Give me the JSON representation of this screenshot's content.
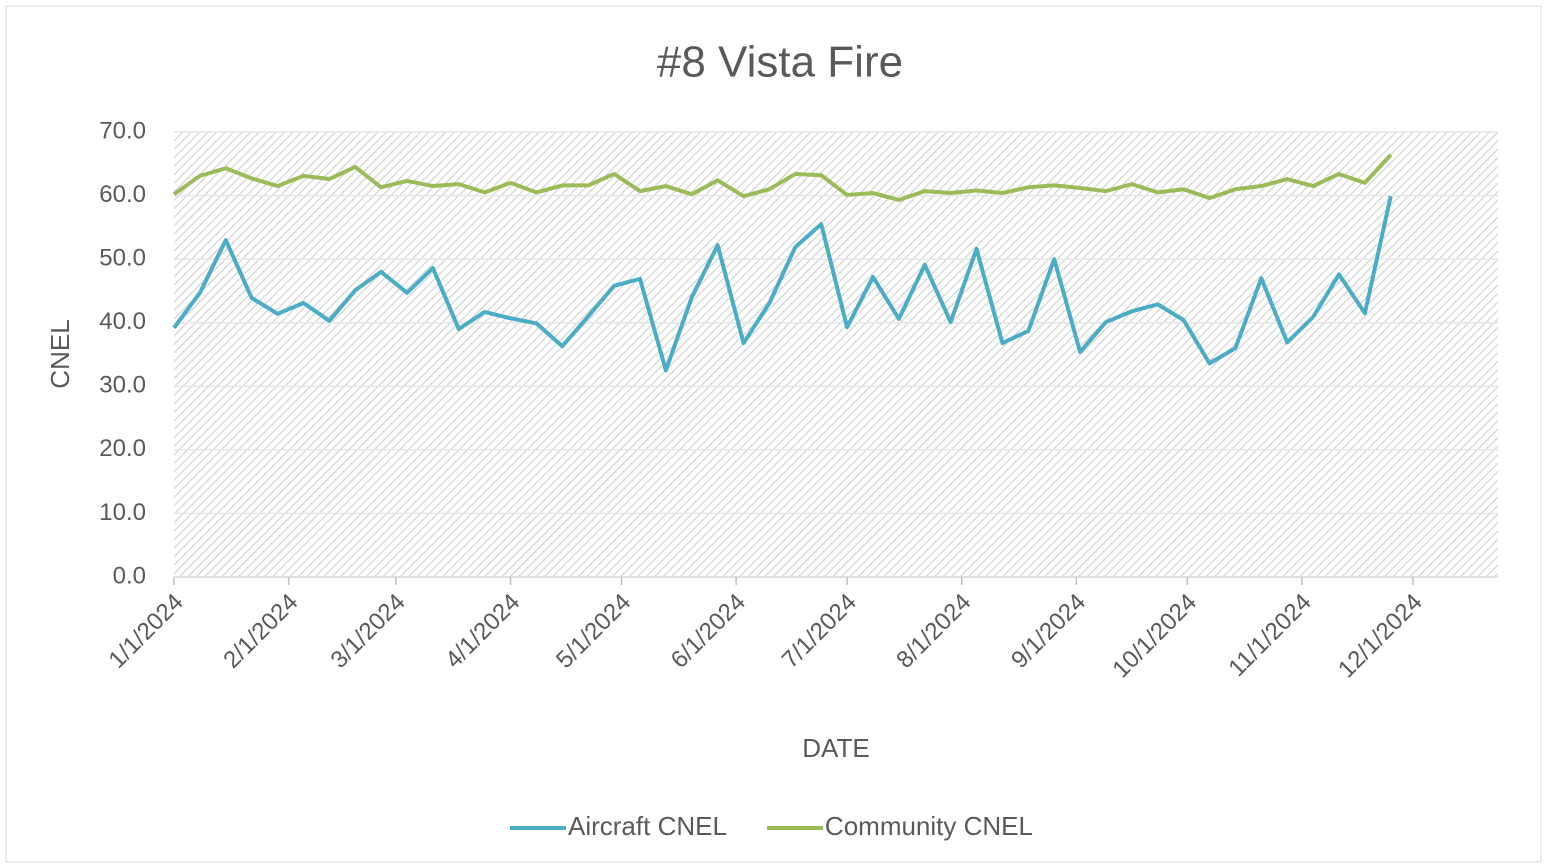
{
  "chart_data": {
    "type": "line",
    "title": "#8 Vista Fire",
    "x_label": "DATE",
    "y_label": "CNEL",
    "x": [
      "1/1/2024",
      "1/8/2024",
      "1/15/2024",
      "1/22/2024",
      "1/29/2024",
      "2/5/2024",
      "2/12/2024",
      "2/19/2024",
      "2/26/2024",
      "3/4/2024",
      "3/11/2024",
      "3/18/2024",
      "3/25/2024",
      "4/1/2024",
      "4/8/2024",
      "4/15/2024",
      "4/22/2024",
      "4/29/2024",
      "5/6/2024",
      "5/13/2024",
      "5/20/2024",
      "5/27/2024",
      "6/3/2024",
      "6/10/2024",
      "6/17/2024",
      "6/24/2024",
      "7/1/2024",
      "7/8/2024",
      "7/15/2024",
      "7/22/2024",
      "7/29/2024",
      "8/5/2024",
      "8/12/2024",
      "8/19/2024",
      "8/26/2024",
      "9/2/2024",
      "9/9/2024",
      "9/16/2024",
      "9/23/2024",
      "9/30/2024",
      "10/7/2024",
      "10/14/2024",
      "10/21/2024",
      "10/28/2024",
      "11/4/2024",
      "11/11/2024",
      "11/18/2024",
      "11/25/2024"
    ],
    "series": [
      {
        "name": "Aircraft CNEL",
        "color": "#4bacc6",
        "values": [
          39.2,
          44.7,
          53.0,
          43.9,
          41.4,
          43.1,
          40.3,
          45.1,
          48.0,
          44.7,
          48.6,
          39.0,
          41.7,
          40.7,
          39.9,
          36.3,
          41.0,
          45.8,
          46.9,
          32.5,
          44.0,
          52.2,
          36.8,
          43.1,
          51.9,
          55.5,
          39.3,
          47.2,
          40.6,
          49.1,
          40.1,
          51.6,
          36.8,
          38.7,
          50.0,
          35.4,
          40.1,
          41.8,
          42.9,
          40.4,
          33.6,
          36.0,
          47.0,
          36.9,
          40.9,
          47.6,
          41.5,
          59.9
        ]
      },
      {
        "name": "Community CNEL",
        "color": "#9bbb59",
        "values": [
          60.2,
          63.1,
          64.3,
          62.7,
          61.5,
          63.1,
          62.6,
          64.5,
          61.3,
          62.3,
          61.5,
          61.8,
          60.5,
          62.0,
          60.5,
          61.6,
          61.6,
          63.4,
          60.7,
          61.5,
          60.2,
          62.4,
          59.9,
          61.0,
          63.4,
          63.2,
          60.1,
          60.4,
          59.3,
          60.7,
          60.4,
          60.8,
          60.4,
          61.3,
          61.6,
          61.2,
          60.7,
          61.8,
          60.5,
          61.0,
          59.6,
          61.0,
          61.5,
          62.6,
          61.5,
          63.4,
          62.0,
          66.4
        ]
      }
    ],
    "xlim": [
      "1/1/2024",
      "12/24/2024"
    ],
    "xticks": [
      "1/1/2024",
      "2/1/2024",
      "3/1/2024",
      "4/1/2024",
      "5/1/2024",
      "6/1/2024",
      "7/1/2024",
      "8/1/2024",
      "9/1/2024",
      "10/1/2024",
      "11/1/2024",
      "12/1/2024"
    ],
    "ylim": [
      0,
      70
    ],
    "yticks": [
      {
        "value": 0,
        "label": "0.0"
      },
      {
        "value": 10,
        "label": "10.0"
      },
      {
        "value": 20,
        "label": "20.0"
      },
      {
        "value": 30,
        "label": "30.0"
      },
      {
        "value": 40,
        "label": "40.0"
      },
      {
        "value": 50,
        "label": "50.0"
      },
      {
        "value": 60,
        "label": "60.0"
      },
      {
        "value": 70,
        "label": "70.0"
      }
    ],
    "grid": true,
    "legend": "bottom"
  }
}
